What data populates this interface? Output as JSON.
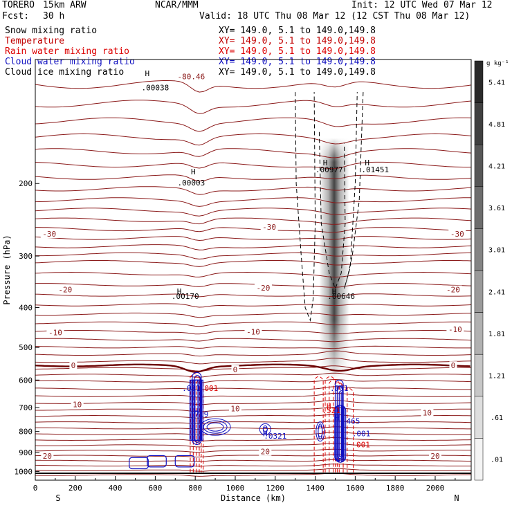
{
  "header": {
    "model": "TORERO",
    "run": "15km ARW",
    "org": "NCAR/MMM",
    "init": "Init: 12 UTC Wed 07 Mar 12",
    "fcst_label": "Fcst:",
    "fcst_value": "30 h",
    "valid": "Valid: 18 UTC Thu 08 Mar 12 (12 CST Thu 08 Mar 12)"
  },
  "legend": [
    {
      "name": "Snow mixing ratio",
      "xy": "XY= 149.0,  5.1 to 149.0,149.8",
      "color": "#000000"
    },
    {
      "name": "Temperature",
      "xy": "XY= 149.0,  5.1 to 149.0,149.8",
      "color": "#c00000"
    },
    {
      "name": "Rain water mixing ratio",
      "xy": "XY= 149.0,  5.1 to 149.0,149.8",
      "color": "#dd0000"
    },
    {
      "name": "Cloud water mixing ratio",
      "xy": "XY= 149.0,  5.1 to 149.0,149.8",
      "color": "#1010c0"
    },
    {
      "name": "Cloud ice mixing ratio",
      "xy": "XY= 149.0,  5.1 to 149.0,149.8",
      "color": "#000000"
    }
  ],
  "chart_data": {
    "type": "cross-section",
    "xlabel": "Distance (km)",
    "ylabel": "Pressure (hPa)",
    "xlim": [
      0,
      2180
    ],
    "ylim": [
      1050,
      100
    ],
    "yscale": "log",
    "x_ticks": [
      0,
      200,
      400,
      600,
      800,
      1000,
      1200,
      1400,
      1600,
      1800,
      2000
    ],
    "y_ticks": [
      200,
      300,
      400,
      500,
      600,
      700,
      800,
      900,
      1000
    ],
    "x_end_labels": {
      "left": "S",
      "right": "N"
    },
    "colorbar": {
      "unit": "g kg⁻¹",
      "labels": [
        "5.41",
        "4.81",
        "4.21",
        "3.61",
        "3.01",
        "2.41",
        "1.81",
        "1.21",
        ".61",
        ".01"
      ],
      "gray_dark": "#2a2a2a",
      "gray_light": "#f4f4f4"
    },
    "temperature_labels": [
      {
        "text": "-80.46",
        "x": 780,
        "p": 110
      },
      {
        "text": "-30",
        "x": 70,
        "p": 265
      },
      {
        "text": "-30",
        "x": 1170,
        "p": 255
      },
      {
        "text": "-30",
        "x": 2110,
        "p": 265
      },
      {
        "text": "-20",
        "x": 150,
        "p": 362
      },
      {
        "text": "-20",
        "x": 1140,
        "p": 358
      },
      {
        "text": "-20",
        "x": 2090,
        "p": 362
      },
      {
        "text": "-10",
        "x": 100,
        "p": 460
      },
      {
        "text": "-10",
        "x": 1090,
        "p": 458
      },
      {
        "text": "-10",
        "x": 2100,
        "p": 452
      },
      {
        "text": "0",
        "x": 190,
        "p": 553
      },
      {
        "text": "0",
        "x": 1000,
        "p": 565
      },
      {
        "text": "0",
        "x": 2090,
        "p": 553
      },
      {
        "text": "10",
        "x": 210,
        "p": 687
      },
      {
        "text": "10",
        "x": 1000,
        "p": 703
      },
      {
        "text": "10",
        "x": 1960,
        "p": 720
      },
      {
        "text": "20",
        "x": 60,
        "p": 917
      },
      {
        "text": "20",
        "x": 1150,
        "p": 895
      },
      {
        "text": "20",
        "x": 2000,
        "p": 917
      }
    ],
    "maxima": [
      {
        "text": ".00038",
        "x": 600,
        "p": 117,
        "color": "#000000"
      },
      {
        "text": ".00003",
        "x": 780,
        "p": 199,
        "color": "#000000"
      },
      {
        "text": ".00170",
        "x": 750,
        "p": 375,
        "color": "#000000"
      },
      {
        "text": ".00977",
        "x": 1470,
        "p": 185,
        "color": "#000000"
      },
      {
        "text": ".01451",
        "x": 1700,
        "p": 185,
        "color": "#000000"
      },
      {
        "text": ".00646",
        "x": 1530,
        "p": 375,
        "color": "#000000"
      },
      {
        "text": ".001",
        "x": 780,
        "p": 628,
        "color": "#1010c0"
      },
      {
        "text": "001",
        "x": 880,
        "p": 628,
        "color": "#dd0000"
      },
      {
        "text": ".719",
        "x": 820,
        "p": 726,
        "color": "#1010c0"
      },
      {
        "text": ".0321",
        "x": 1200,
        "p": 820,
        "color": "#1010c0"
      },
      {
        "text": ".001",
        "x": 1520,
        "p": 628,
        "color": "#1010c0"
      },
      {
        "text": ".521",
        "x": 1480,
        "p": 710,
        "color": "#dd0000"
      },
      {
        "text": "465",
        "x": 1590,
        "p": 755,
        "color": "#1010c0"
      },
      {
        "text": ".001",
        "x": 1630,
        "p": 808,
        "color": "#1010c0"
      },
      {
        "text": "001",
        "x": 1640,
        "p": 860,
        "color": "#dd0000"
      }
    ],
    "h_markers": [
      {
        "x": 560,
        "p": 108,
        "color": "#000000"
      },
      {
        "x": 790,
        "p": 187,
        "color": "#000000"
      },
      {
        "x": 720,
        "p": 365,
        "color": "#000000"
      },
      {
        "x": 1450,
        "p": 178,
        "color": "#000000"
      },
      {
        "x": 1660,
        "p": 178,
        "color": "#000000"
      },
      {
        "x": 1495,
        "p": 365,
        "color": "#000000"
      },
      {
        "x": 805,
        "p": 713,
        "color": "#1010c0"
      },
      {
        "x": 1150,
        "p": 808,
        "color": "#1010c0"
      },
      {
        "x": 1468,
        "p": 694,
        "color": "#dd0000"
      },
      {
        "x": 1510,
        "p": 740,
        "color": "#1010c0"
      }
    ],
    "colors": {
      "temperature": "#8b1a1a",
      "rain": "#dd0000",
      "cloud_water": "#1010c0",
      "ice": "#000000",
      "snow_shading": "#222222"
    }
  }
}
